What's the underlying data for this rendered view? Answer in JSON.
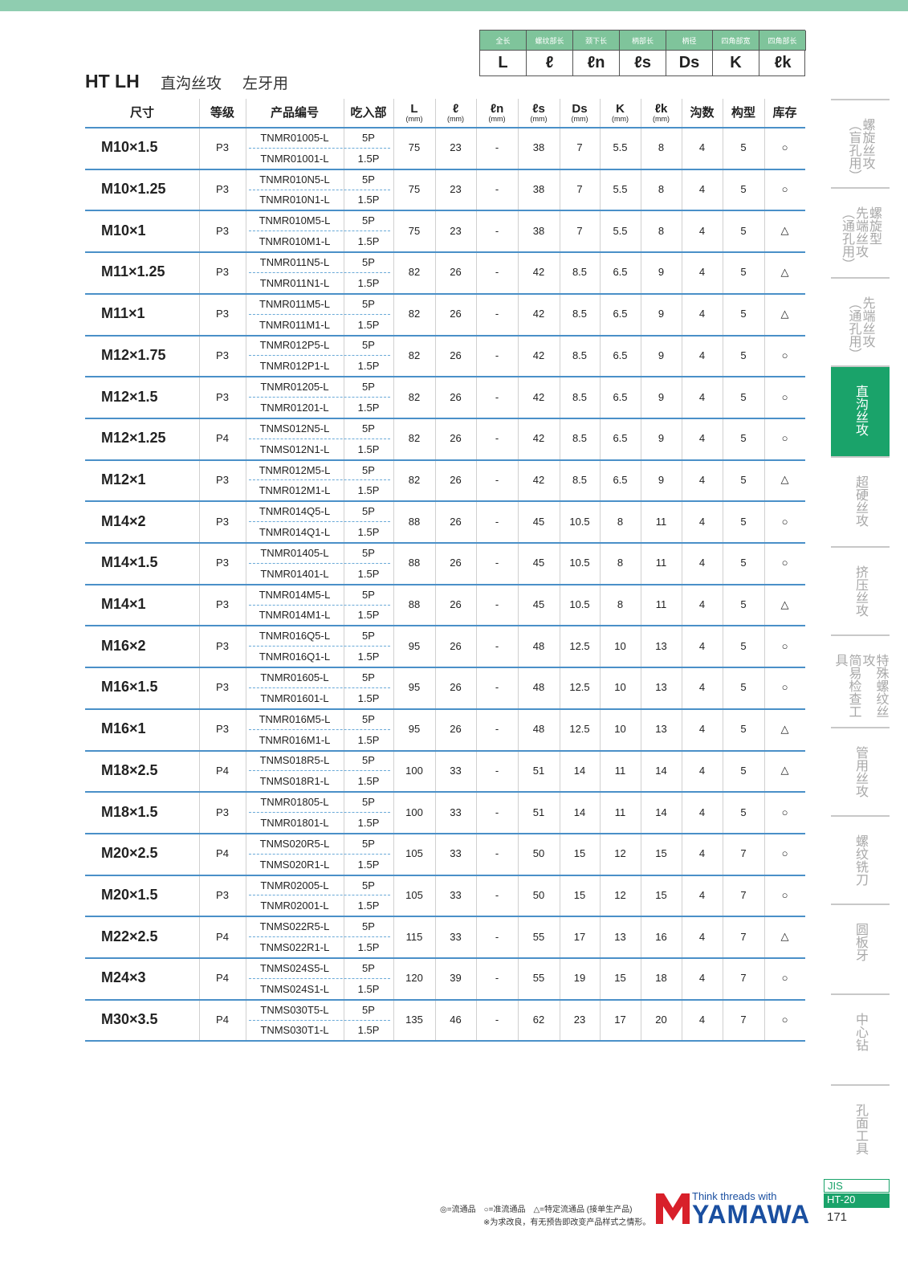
{
  "header": {
    "title": "HT LH",
    "subtitle": [
      "直沟丝攻",
      "左牙用"
    ]
  },
  "dimension_key": {
    "labels": [
      "全长",
      "螺纹部长",
      "颈下长",
      "柄部长",
      "柄径",
      "四角部宽",
      "四角部长"
    ],
    "symbols": [
      "L",
      "ℓ",
      "ℓn",
      "ℓs",
      "Ds",
      "K",
      "ℓk"
    ]
  },
  "table": {
    "columns": [
      [
        "尺寸"
      ],
      [
        "等级"
      ],
      [
        "产品编号"
      ],
      [
        "吃入部"
      ],
      [
        "L",
        "(mm)"
      ],
      [
        "ℓ",
        "(mm)"
      ],
      [
        "ℓn",
        "(mm)"
      ],
      [
        "ℓs",
        "(mm)"
      ],
      [
        "Ds",
        "(mm)"
      ],
      [
        "K",
        "(mm)"
      ],
      [
        "ℓk",
        "(mm)"
      ],
      [
        "沟数"
      ],
      [
        "构型"
      ],
      [
        "库存"
      ]
    ],
    "rows": [
      [
        "M10×1.5",
        "P3",
        [
          "TNMR01005-L",
          "TNMR01001-L"
        ],
        [
          "5P",
          "1.5P"
        ],
        75,
        23,
        "-",
        38,
        7,
        5.5,
        8,
        4,
        5,
        "○"
      ],
      [
        "M10×1.25",
        "P3",
        [
          "TNMR010N5-L",
          "TNMR010N1-L"
        ],
        [
          "5P",
          "1.5P"
        ],
        75,
        23,
        "-",
        38,
        7,
        5.5,
        8,
        4,
        5,
        "○"
      ],
      [
        "M10×1",
        "P3",
        [
          "TNMR010M5-L",
          "TNMR010M1-L"
        ],
        [
          "5P",
          "1.5P"
        ],
        75,
        23,
        "-",
        38,
        7,
        5.5,
        8,
        4,
        5,
        "△"
      ],
      [
        "M11×1.25",
        "P3",
        [
          "TNMR011N5-L",
          "TNMR011N1-L"
        ],
        [
          "5P",
          "1.5P"
        ],
        82,
        26,
        "-",
        42,
        8.5,
        6.5,
        9,
        4,
        5,
        "△"
      ],
      [
        "M11×1",
        "P3",
        [
          "TNMR011M5-L",
          "TNMR011M1-L"
        ],
        [
          "5P",
          "1.5P"
        ],
        82,
        26,
        "-",
        42,
        8.5,
        6.5,
        9,
        4,
        5,
        "△"
      ],
      [
        "M12×1.75",
        "P3",
        [
          "TNMR012P5-L",
          "TNMR012P1-L"
        ],
        [
          "5P",
          "1.5P"
        ],
        82,
        26,
        "-",
        42,
        8.5,
        6.5,
        9,
        4,
        5,
        "○"
      ],
      [
        "M12×1.5",
        "P3",
        [
          "TNMR01205-L",
          "TNMR01201-L"
        ],
        [
          "5P",
          "1.5P"
        ],
        82,
        26,
        "-",
        42,
        8.5,
        6.5,
        9,
        4,
        5,
        "○"
      ],
      [
        "M12×1.25",
        "P4",
        [
          "TNMS012N5-L",
          "TNMS012N1-L"
        ],
        [
          "5P",
          "1.5P"
        ],
        82,
        26,
        "-",
        42,
        8.5,
        6.5,
        9,
        4,
        5,
        "○"
      ],
      [
        "M12×1",
        "P3",
        [
          "TNMR012M5-L",
          "TNMR012M1-L"
        ],
        [
          "5P",
          "1.5P"
        ],
        82,
        26,
        "-",
        42,
        8.5,
        6.5,
        9,
        4,
        5,
        "△"
      ],
      [
        "M14×2",
        "P3",
        [
          "TNMR014Q5-L",
          "TNMR014Q1-L"
        ],
        [
          "5P",
          "1.5P"
        ],
        88,
        26,
        "-",
        45,
        10.5,
        8,
        11,
        4,
        5,
        "○"
      ],
      [
        "M14×1.5",
        "P3",
        [
          "TNMR01405-L",
          "TNMR01401-L"
        ],
        [
          "5P",
          "1.5P"
        ],
        88,
        26,
        "-",
        45,
        10.5,
        8,
        11,
        4,
        5,
        "○"
      ],
      [
        "M14×1",
        "P3",
        [
          "TNMR014M5-L",
          "TNMR014M1-L"
        ],
        [
          "5P",
          "1.5P"
        ],
        88,
        26,
        "-",
        45,
        10.5,
        8,
        11,
        4,
        5,
        "△"
      ],
      [
        "M16×2",
        "P3",
        [
          "TNMR016Q5-L",
          "TNMR016Q1-L"
        ],
        [
          "5P",
          "1.5P"
        ],
        95,
        26,
        "-",
        48,
        12.5,
        10,
        13,
        4,
        5,
        "○"
      ],
      [
        "M16×1.5",
        "P3",
        [
          "TNMR01605-L",
          "TNMR01601-L"
        ],
        [
          "5P",
          "1.5P"
        ],
        95,
        26,
        "-",
        48,
        12.5,
        10,
        13,
        4,
        5,
        "○"
      ],
      [
        "M16×1",
        "P3",
        [
          "TNMR016M5-L",
          "TNMR016M1-L"
        ],
        [
          "5P",
          "1.5P"
        ],
        95,
        26,
        "-",
        48,
        12.5,
        10,
        13,
        4,
        5,
        "△"
      ],
      [
        "M18×2.5",
        "P4",
        [
          "TNMS018R5-L",
          "TNMS018R1-L"
        ],
        [
          "5P",
          "1.5P"
        ],
        100,
        33,
        "-",
        51,
        14,
        11,
        14,
        4,
        5,
        "△"
      ],
      [
        "M18×1.5",
        "P3",
        [
          "TNMR01805-L",
          "TNMR01801-L"
        ],
        [
          "5P",
          "1.5P"
        ],
        100,
        33,
        "-",
        51,
        14,
        11,
        14,
        4,
        5,
        "○"
      ],
      [
        "M20×2.5",
        "P4",
        [
          "TNMS020R5-L",
          "TNMS020R1-L"
        ],
        [
          "5P",
          "1.5P"
        ],
        105,
        33,
        "-",
        50,
        15,
        12,
        15,
        4,
        7,
        "○"
      ],
      [
        "M20×1.5",
        "P3",
        [
          "TNMR02005-L",
          "TNMR02001-L"
        ],
        [
          "5P",
          "1.5P"
        ],
        105,
        33,
        "-",
        50,
        15,
        12,
        15,
        4,
        7,
        "○"
      ],
      [
        "M22×2.5",
        "P4",
        [
          "TNMS022R5-L",
          "TNMS022R1-L"
        ],
        [
          "5P",
          "1.5P"
        ],
        115,
        33,
        "-",
        55,
        17,
        13,
        16,
        4,
        7,
        "△"
      ],
      [
        "M24×3",
        "P4",
        [
          "TNMS024S5-L",
          "TNMS024S1-L"
        ],
        [
          "5P",
          "1.5P"
        ],
        120,
        39,
        "-",
        55,
        19,
        15,
        18,
        4,
        7,
        "○"
      ],
      [
        "M30×3.5",
        "P4",
        [
          "TNMS030T5-L",
          "TNMS030T1-L"
        ],
        [
          "5P",
          "1.5P"
        ],
        135,
        46,
        "-",
        62,
        23,
        17,
        20,
        4,
        7,
        "○"
      ]
    ]
  },
  "side_tabs": [
    {
      "lines": [
        "螺旋丝攻",
        "（盲孔用）"
      ]
    },
    {
      "lines": [
        "螺旋型",
        "先端丝攻",
        "（通孔用）"
      ]
    },
    {
      "lines": [
        "先端丝攻",
        "（通孔用）"
      ]
    },
    {
      "lines": [
        "直沟丝攻"
      ],
      "active": true
    },
    {
      "lines": [
        "超硬丝攻"
      ]
    },
    {
      "lines": [
        "挤压丝攻"
      ]
    },
    {
      "lines": [
        "特殊螺纹丝攻",
        "简易检查工具"
      ]
    },
    {
      "lines": [
        "管用丝攻"
      ]
    },
    {
      "lines": [
        "螺纹铣刀"
      ]
    },
    {
      "lines": [
        "圆板牙"
      ]
    },
    {
      "lines": [
        "中心钻"
      ]
    },
    {
      "lines": [
        "孔面工具"
      ]
    }
  ],
  "footer": {
    "legend": "◎=流通品　○=准流通品　△=特定流通品 (接单生产品)",
    "note": "※为求改良，有无预告即改变产品样式之情形。",
    "brand_tagline": "Think threads with",
    "brand": "YAMAWA",
    "standard": "JIS",
    "series": "HT-20",
    "page": 171
  }
}
